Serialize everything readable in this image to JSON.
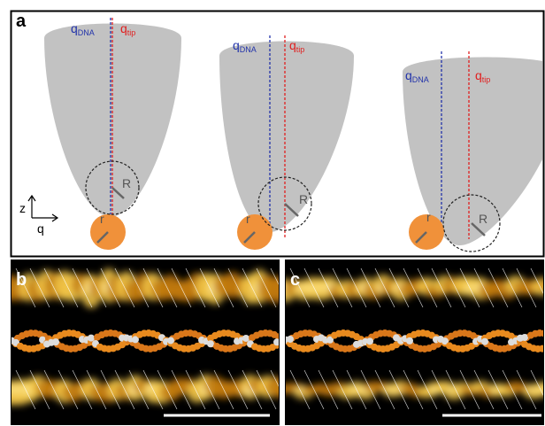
{
  "panels": {
    "a": {
      "label": "a",
      "tips": [
        {
          "q_dna": {
            "symbol": "q",
            "subscript": "DNA"
          },
          "q_tip": {
            "symbol": "q",
            "subscript": "tip"
          },
          "big_radius": "R",
          "small_radius": "r"
        },
        {
          "q_dna": {
            "symbol": "q",
            "subscript": "DNA"
          },
          "q_tip": {
            "symbol": "q",
            "subscript": "tip"
          },
          "big_radius": "R",
          "small_radius": "r"
        },
        {
          "q_dna": {
            "symbol": "q",
            "subscript": "DNA"
          },
          "q_tip": {
            "symbol": "q",
            "subscript": "tip"
          },
          "big_radius": "R",
          "small_radius": "r"
        }
      ],
      "axes": {
        "vertical": "z",
        "horizontal": "q"
      }
    },
    "b": {
      "label": "b"
    },
    "c": {
      "label": "c"
    }
  }
}
